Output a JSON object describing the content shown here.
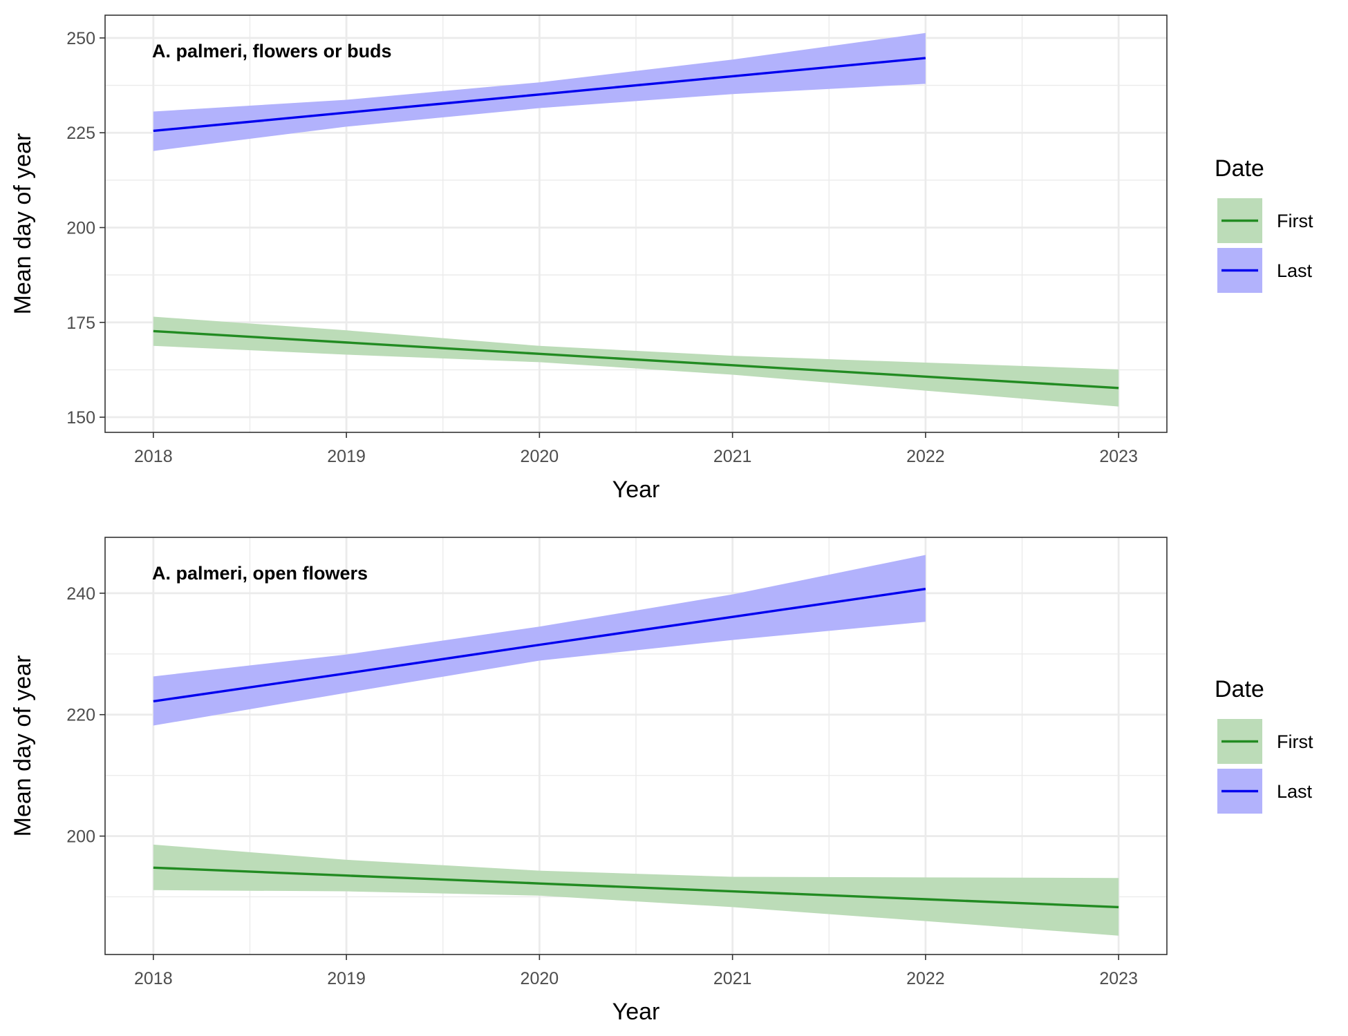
{
  "chart_data": [
    {
      "type": "line",
      "title": "A. palmeri, flowers or buds",
      "xlabel": "Year",
      "ylabel": "Mean day of year",
      "xlim": [
        2017.75,
        2023.25
      ],
      "ylim": [
        146,
        256
      ],
      "x_ticks": [
        2018,
        2019,
        2020,
        2021,
        2022,
        2023
      ],
      "y_ticks": [
        150,
        175,
        200,
        225,
        250
      ],
      "grid": true,
      "legend": {
        "title": "Date",
        "position": "right"
      },
      "series": [
        {
          "name": "First",
          "color": "#228B22",
          "fill": "#bcdcb8",
          "x": [
            2018,
            2019,
            2020,
            2021,
            2022,
            2023
          ],
          "y": [
            172.7,
            169.7,
            166.7,
            163.7,
            160.7,
            157.7
          ],
          "lower": [
            168.8,
            166.5,
            164.5,
            161.2,
            157.0,
            152.8
          ],
          "upper": [
            176.5,
            172.9,
            168.8,
            166.2,
            164.4,
            162.6
          ]
        },
        {
          "name": "Last",
          "color": "#0000ee",
          "fill": "#b2b2fc",
          "x": [
            2018,
            2019,
            2020,
            2021,
            2022
          ],
          "y": [
            225.5,
            230.3,
            235.1,
            239.9,
            244.7
          ],
          "lower": [
            220.2,
            226.6,
            231.5,
            235.2,
            237.9
          ],
          "upper": [
            230.6,
            233.7,
            238.3,
            244.3,
            251.3
          ]
        }
      ]
    },
    {
      "type": "line",
      "title": "A. palmeri, open flowers",
      "xlabel": "Year",
      "ylabel": "Mean day of year",
      "xlim": [
        2017.75,
        2023.25
      ],
      "ylim": [
        180.5,
        249.2
      ],
      "x_ticks": [
        2018,
        2019,
        2020,
        2021,
        2022,
        2023
      ],
      "y_ticks": [
        200,
        220,
        240
      ],
      "grid": true,
      "legend": {
        "title": "Date",
        "position": "right"
      },
      "series": [
        {
          "name": "First",
          "color": "#228B22",
          "fill": "#bcdcb8",
          "x": [
            2018,
            2019,
            2020,
            2021,
            2022,
            2023
          ],
          "y": [
            194.8,
            193.5,
            192.2,
            190.9,
            189.6,
            188.3
          ],
          "lower": [
            191.1,
            190.9,
            190.2,
            188.3,
            186.0,
            183.6
          ],
          "upper": [
            198.6,
            196.1,
            194.3,
            193.3,
            193.2,
            193.1
          ]
        },
        {
          "name": "Last",
          "color": "#0000ee",
          "fill": "#b2b2fc",
          "x": [
            2018,
            2019,
            2020,
            2021,
            2022
          ],
          "y": [
            222.2,
            226.8,
            231.5,
            236.1,
            240.7
          ],
          "lower": [
            218.2,
            223.6,
            228.9,
            232.3,
            235.3
          ],
          "upper": [
            226.3,
            229.9,
            234.5,
            239.8,
            246.3
          ]
        }
      ]
    }
  ]
}
